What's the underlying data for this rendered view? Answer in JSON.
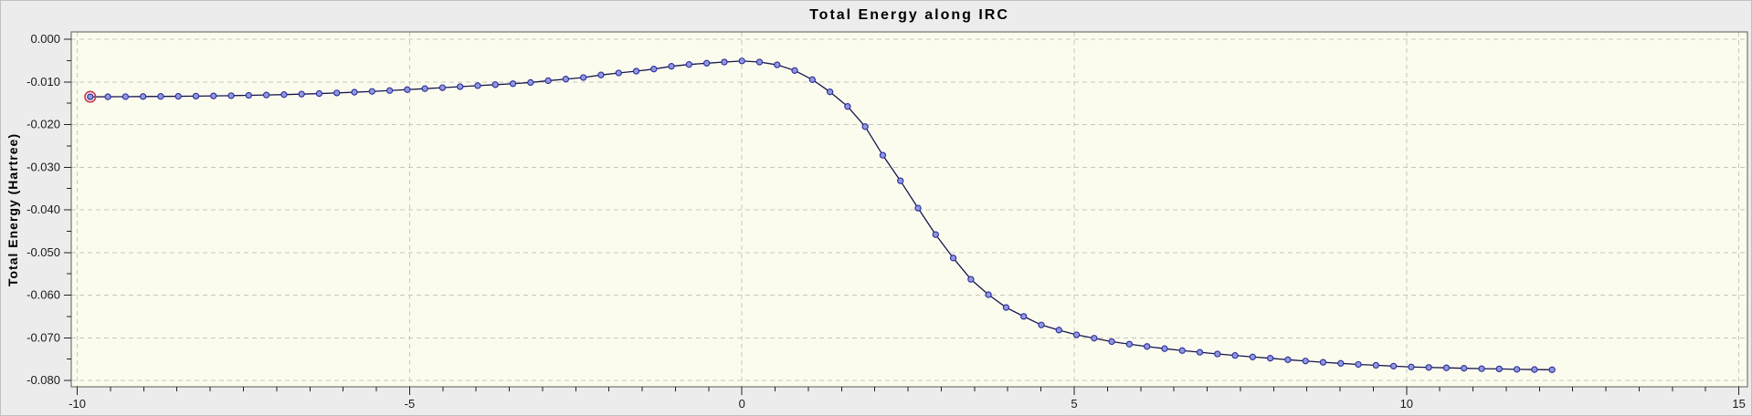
{
  "window": {
    "background_color": "#ececec",
    "plot_background_color": "#fcfcee"
  },
  "chart": {
    "title": "Total Energy along IRC",
    "y_axis_label": "Total Energy (Hartree)"
  },
  "chart_data": {
    "type": "line",
    "title": "Total Energy along IRC",
    "xlabel": "",
    "ylabel": "Total Energy (Hartree)",
    "xlim": [
      -10.09,
      15.13
    ],
    "ylim": [
      -0.0815,
      0.0017
    ],
    "grid": "dashed-at-major-ticks",
    "legend_position": "none",
    "x_major_ticks": [
      -10,
      -5,
      0,
      5,
      10,
      15
    ],
    "x_tick_labels": [
      "-10",
      "-5",
      "0",
      "5",
      "10",
      "15"
    ],
    "x_minor_tick_step": 0.5,
    "y_major_ticks": [
      0.0,
      -0.01,
      -0.02,
      -0.03,
      -0.04,
      -0.05,
      -0.06,
      -0.07,
      -0.08
    ],
    "y_tick_labels": [
      "0.000",
      "-0.010",
      "-0.020",
      "-0.030",
      "-0.040",
      "-0.050",
      "-0.060",
      "-0.070",
      "-0.080"
    ],
    "y_minor_tick_step": 0.005,
    "selected_point_index": 0,
    "colors": {
      "line": "#16164e",
      "marker_fill": "#9099dd",
      "marker_stroke": "#2b2b9e",
      "selected_ring": "#c23b50",
      "grid": "#c6c6bc",
      "frame": "#5a5a5a",
      "tick": "#222222",
      "plot_bg": "#fcfcee"
    },
    "series": [
      {
        "name": "Total Energy",
        "marker": "circle",
        "points": [
          [
            -9.805,
            -0.0135
          ],
          [
            -9.54,
            -0.01349
          ],
          [
            -9.275,
            -0.01347
          ],
          [
            -9.01,
            -0.01344
          ],
          [
            -8.745,
            -0.01341
          ],
          [
            -8.48,
            -0.01338
          ],
          [
            -8.215,
            -0.01334
          ],
          [
            -7.95,
            -0.01329
          ],
          [
            -7.685,
            -0.01323
          ],
          [
            -7.42,
            -0.01316
          ],
          [
            -7.155,
            -0.01308
          ],
          [
            -6.89,
            -0.01298
          ],
          [
            -6.625,
            -0.01287
          ],
          [
            -6.36,
            -0.01274
          ],
          [
            -6.095,
            -0.01259
          ],
          [
            -5.83,
            -0.01242
          ],
          [
            -5.565,
            -0.01224
          ],
          [
            -5.3,
            -0.01204
          ],
          [
            -5.035,
            -0.01182
          ],
          [
            -4.77,
            -0.01159
          ],
          [
            -4.505,
            -0.01136
          ],
          [
            -4.24,
            -0.01112
          ],
          [
            -3.975,
            -0.01089
          ],
          [
            -3.71,
            -0.01066
          ],
          [
            -3.445,
            -0.01043
          ],
          [
            -3.18,
            -0.01015
          ],
          [
            -2.915,
            -0.00972
          ],
          [
            -2.65,
            -0.00935
          ],
          [
            -2.385,
            -0.00898
          ],
          [
            -2.12,
            -0.00838
          ],
          [
            -1.855,
            -0.00791
          ],
          [
            -1.59,
            -0.00749
          ],
          [
            -1.325,
            -0.00699
          ],
          [
            -1.06,
            -0.00635
          ],
          [
            -0.795,
            -0.00592
          ],
          [
            -0.53,
            -0.00563
          ],
          [
            -0.265,
            -0.00535
          ],
          [
            0.0,
            -0.0051
          ],
          [
            0.265,
            -0.00535
          ],
          [
            0.53,
            -0.006
          ],
          [
            0.795,
            -0.00734
          ],
          [
            1.06,
            -0.00948
          ],
          [
            1.325,
            -0.01234
          ],
          [
            1.59,
            -0.01576
          ],
          [
            1.855,
            -0.0205
          ],
          [
            2.12,
            -0.0272
          ],
          [
            2.385,
            -0.0332
          ],
          [
            2.65,
            -0.0396
          ],
          [
            2.915,
            -0.0458
          ],
          [
            3.18,
            -0.0513
          ],
          [
            3.445,
            -0.0563
          ],
          [
            3.71,
            -0.0599
          ],
          [
            3.975,
            -0.0629
          ],
          [
            4.24,
            -0.065
          ],
          [
            4.505,
            -0.067
          ],
          [
            4.77,
            -0.0682
          ],
          [
            5.035,
            -0.0693
          ],
          [
            5.3,
            -0.0701
          ],
          [
            5.565,
            -0.0709
          ],
          [
            5.83,
            -0.0715
          ],
          [
            6.095,
            -0.07205
          ],
          [
            6.36,
            -0.07255
          ],
          [
            6.625,
            -0.073
          ],
          [
            6.89,
            -0.0734
          ],
          [
            7.155,
            -0.0738
          ],
          [
            7.42,
            -0.07415
          ],
          [
            7.685,
            -0.0745
          ],
          [
            7.95,
            -0.0748
          ],
          [
            8.215,
            -0.07515
          ],
          [
            8.48,
            -0.07545
          ],
          [
            8.745,
            -0.07575
          ],
          [
            9.01,
            -0.076
          ],
          [
            9.275,
            -0.07625
          ],
          [
            9.54,
            -0.07645
          ],
          [
            9.805,
            -0.07665
          ],
          [
            10.07,
            -0.07685
          ],
          [
            10.335,
            -0.07695
          ],
          [
            10.6,
            -0.07705
          ],
          [
            10.865,
            -0.07715
          ],
          [
            11.13,
            -0.07725
          ],
          [
            11.395,
            -0.0773
          ],
          [
            11.66,
            -0.0774
          ],
          [
            11.925,
            -0.07745
          ],
          [
            12.19,
            -0.0775
          ]
        ]
      }
    ]
  }
}
